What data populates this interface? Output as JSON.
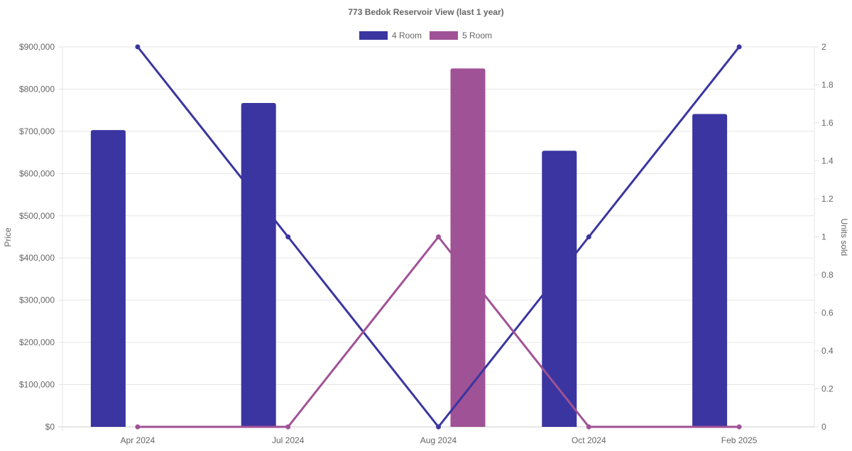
{
  "chart_data": {
    "type": "bar",
    "title": "773 Bedok Reservoir View (last 1 year)",
    "categories": [
      "Apr 2024",
      "Jul 2024",
      "Aug 2024",
      "Oct 2024",
      "Feb 2025"
    ],
    "ylabel": "Price",
    "y2label": "Units sold",
    "ylim": [
      0,
      900000
    ],
    "y2lim": [
      0,
      2
    ],
    "yticks": [
      "$0",
      "$100,000",
      "$200,000",
      "$300,000",
      "$400,000",
      "$500,000",
      "$600,000",
      "$700,000",
      "$800,000",
      "$900,000"
    ],
    "y2ticks": [
      "0",
      "0.2",
      "0.4",
      "0.6",
      "0.8",
      "1",
      "1.2",
      "1.4",
      "1.6",
      "1.8",
      "2"
    ],
    "grid": true,
    "legend_position": "top-center",
    "series": [
      {
        "name": "4 Room",
        "color": "#3a35a0",
        "price": [
          703000,
          767000,
          null,
          654000,
          741000
        ],
        "units_sold": [
          2,
          1,
          0,
          1,
          2
        ]
      },
      {
        "name": "5 Room",
        "color": "#a05296",
        "price": [
          null,
          null,
          849000,
          null,
          null
        ],
        "units_sold": [
          0,
          0,
          1,
          0,
          0
        ]
      }
    ]
  }
}
